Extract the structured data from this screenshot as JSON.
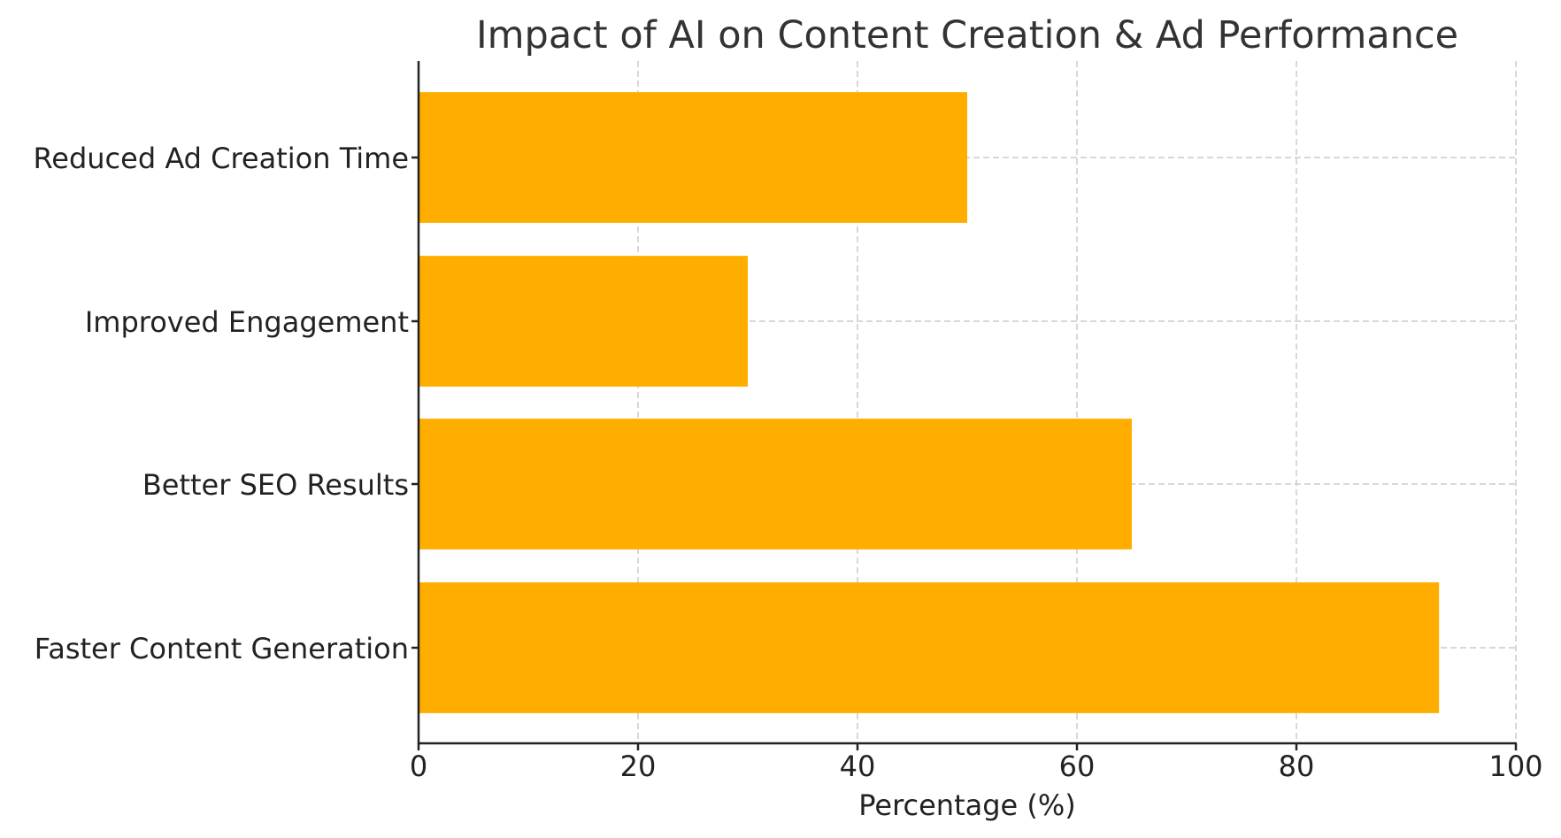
{
  "chart_data": {
    "type": "bar",
    "orientation": "horizontal",
    "title": "Impact of AI on Content Creation & Ad Performance",
    "xlabel": "Percentage (%)",
    "ylabel": "",
    "categories": [
      "Reduced Ad Creation Time",
      "Improved Engagement",
      "Better SEO Results",
      "Faster Content Generation"
    ],
    "values": [
      50,
      30,
      65,
      93
    ],
    "xlim": [
      0,
      100
    ],
    "xticks": [
      0,
      20,
      40,
      60,
      80,
      100
    ],
    "xtick_labels": [
      "0",
      "20",
      "40",
      "60",
      "80",
      "100"
    ],
    "grid": true,
    "grid_style": "dashed",
    "legend": null,
    "bar_color": "#FFAE00"
  },
  "colors": {
    "bar": "#FFAE00",
    "grid": "#cccccc",
    "axis": "#222222",
    "title": "#333333"
  }
}
